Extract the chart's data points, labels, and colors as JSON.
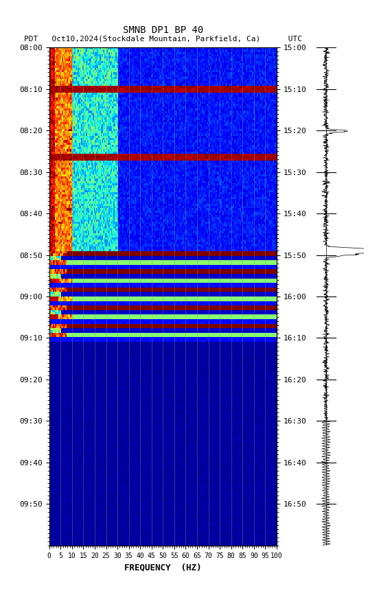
{
  "title_line1": "SMNB DP1 BP 40",
  "title_line2": "PDT   Oct10,2024(Stockdale Mountain, Parkfield, Ca)      UTC",
  "xlabel": "FREQUENCY  (HZ)",
  "xticks": [
    0,
    5,
    10,
    15,
    20,
    25,
    30,
    35,
    40,
    45,
    50,
    55,
    60,
    65,
    70,
    75,
    80,
    85,
    90,
    95,
    100
  ],
  "xlim": [
    0,
    100
  ],
  "left_yticks_labels": [
    "08:00",
    "08:10",
    "08:20",
    "08:30",
    "08:40",
    "08:50",
    "09:00",
    "09:10",
    "09:20",
    "09:30",
    "09:40",
    "09:50"
  ],
  "right_yticks_labels": [
    "15:00",
    "15:10",
    "15:20",
    "15:30",
    "15:40",
    "15:50",
    "16:00",
    "16:10",
    "16:20",
    "16:30",
    "16:40",
    "16:50"
  ],
  "bg_color": "#ffffff",
  "seed": 42,
  "time_max": 120,
  "freq_max": 100
}
